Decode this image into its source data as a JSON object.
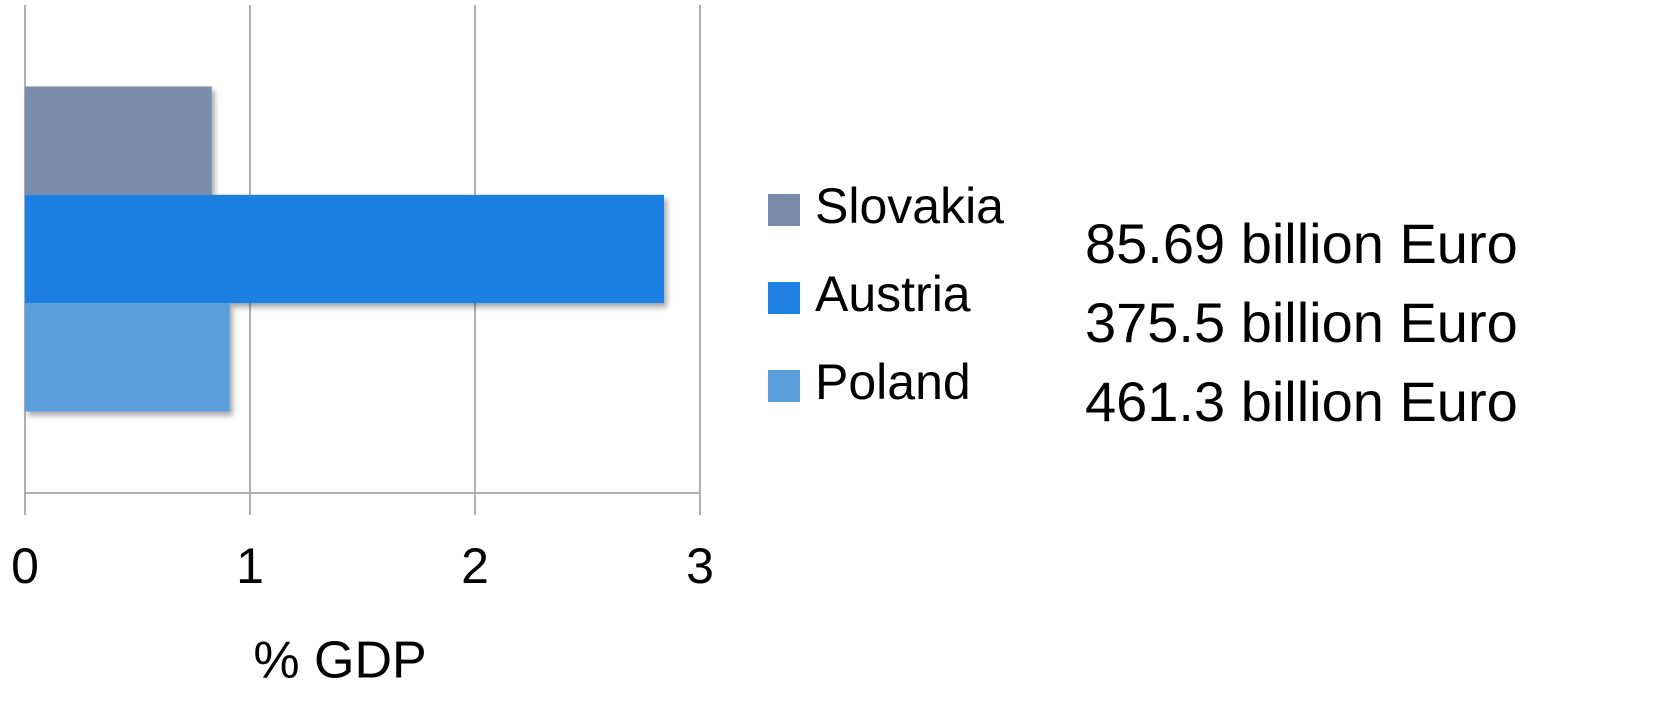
{
  "chart_data": {
    "type": "bar",
    "orientation": "horizontal",
    "categories": [
      null
    ],
    "series": [
      {
        "name": "Slovakia",
        "color": "#7a8cab",
        "values": [
          0.83
        ]
      },
      {
        "name": "Austria",
        "color": "#1e80e2",
        "values": [
          2.84
        ]
      },
      {
        "name": "Poland",
        "color": "#5a9fdc",
        "values": [
          0.91
        ]
      }
    ],
    "xlim": [
      0,
      3
    ],
    "xticks": [
      0,
      1,
      2,
      3
    ],
    "grid": true,
    "xlabel": "% GDP",
    "legend": "right",
    "annotations": [
      "85.69 billion Euro",
      "375.5 billion Euro",
      "461.3 billion Euro"
    ]
  }
}
